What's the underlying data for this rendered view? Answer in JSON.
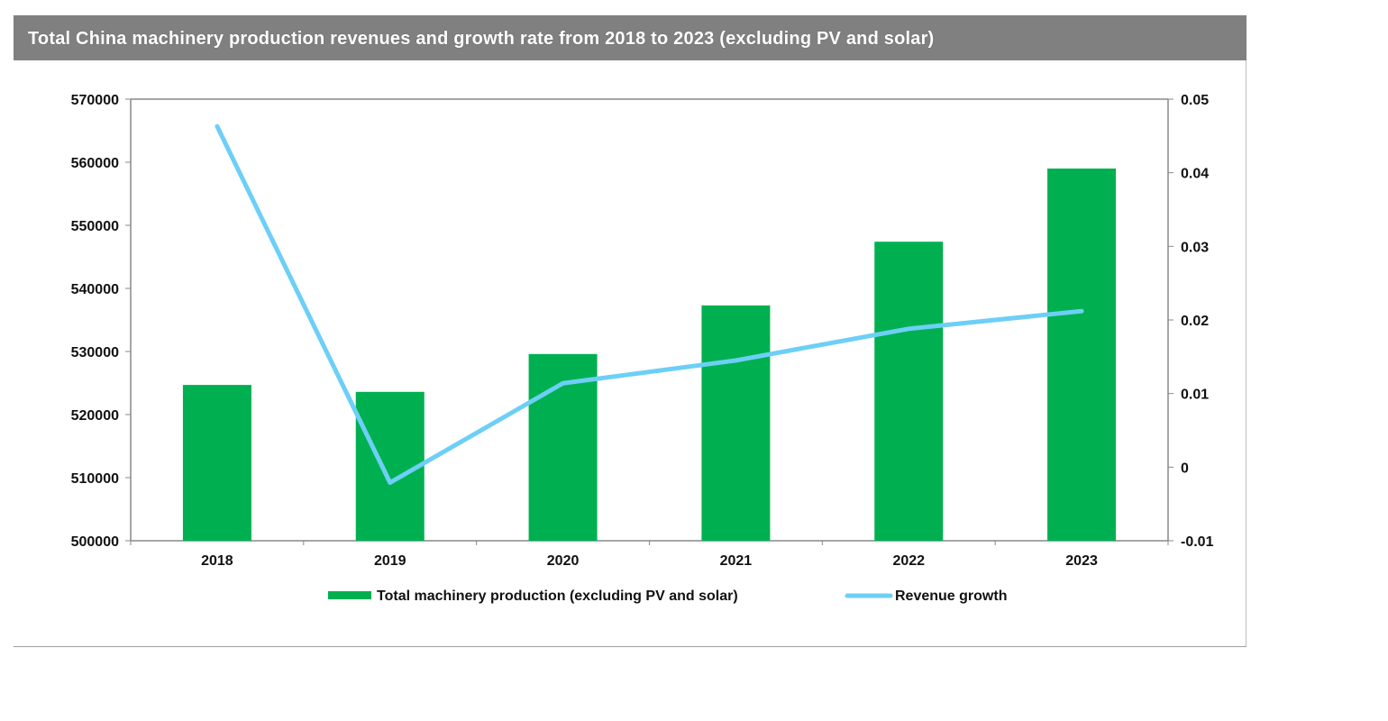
{
  "chart_data": {
    "type": "bar+line",
    "title": "Total China machinery production revenues and growth rate from 2018 to 2023 (excluding PV and solar)",
    "categories": [
      "2018",
      "2019",
      "2020",
      "2021",
      "2022",
      "2023"
    ],
    "series": [
      {
        "name": "Total machinery production (excluding PV and solar)",
        "type": "bar",
        "axis": "left",
        "color": "#00b050",
        "values": [
          524700,
          523600,
          529600,
          537300,
          547400,
          559000
        ]
      },
      {
        "name": "Revenue growth",
        "type": "line",
        "axis": "right",
        "color": "#6dcff6",
        "values": [
          0.0463,
          -0.0021,
          0.0114,
          0.0145,
          0.0188,
          0.0212
        ]
      }
    ],
    "y_left": {
      "range": [
        500000,
        570000
      ],
      "ticks": [
        "500000",
        "510000",
        "520000",
        "530000",
        "540000",
        "550000",
        "560000",
        "570000"
      ]
    },
    "y_right": {
      "range": [
        -0.01,
        0.05
      ],
      "ticks": [
        "-0.01",
        "0",
        "0.01",
        "0.02",
        "0.03",
        "0.04",
        "0.05"
      ]
    },
    "grid": false,
    "legend_position": "bottom"
  }
}
